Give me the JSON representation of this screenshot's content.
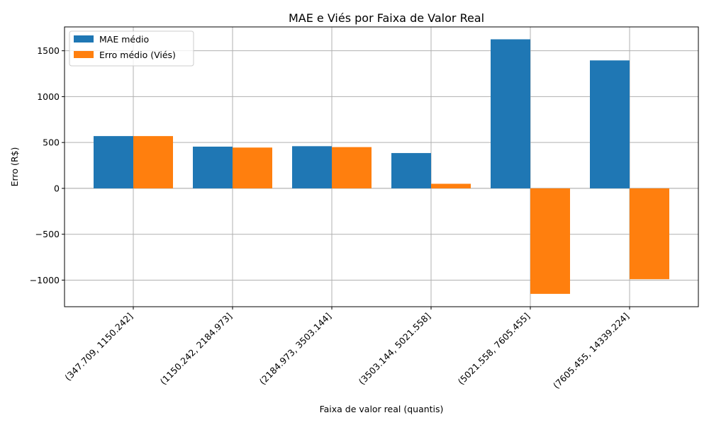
{
  "chart_data": {
    "type": "bar",
    "title": "MAE e Viés por Faixa de Valor Real",
    "xlabel": "Faixa de valor real (quantis)",
    "ylabel": "Erro (R$)",
    "categories": [
      "(347.709, 1150.242]",
      "(1150.242, 2184.973]",
      "(2184.973, 3503.144]",
      "(3503.144, 5021.558]",
      "(5021.558, 7605.455]",
      "(7605.455, 14339.224]"
    ],
    "series": [
      {
        "name": "MAE médio",
        "color": "#1f77b4",
        "values": [
          570,
          455,
          460,
          385,
          1625,
          1395
        ]
      },
      {
        "name": "Erro médio (Viés)",
        "color": "#ff7f0e",
        "values": [
          570,
          445,
          450,
          50,
          -1150,
          -990
        ]
      }
    ],
    "ylim": [
      -1290,
      1760
    ],
    "yticks": [
      -1000,
      -500,
      0,
      500,
      1000,
      1500
    ],
    "ytick_labels": [
      "−1000",
      "−500",
      "0",
      "500",
      "1000",
      "1500"
    ],
    "grid": true,
    "legend_position": "upper-left"
  }
}
